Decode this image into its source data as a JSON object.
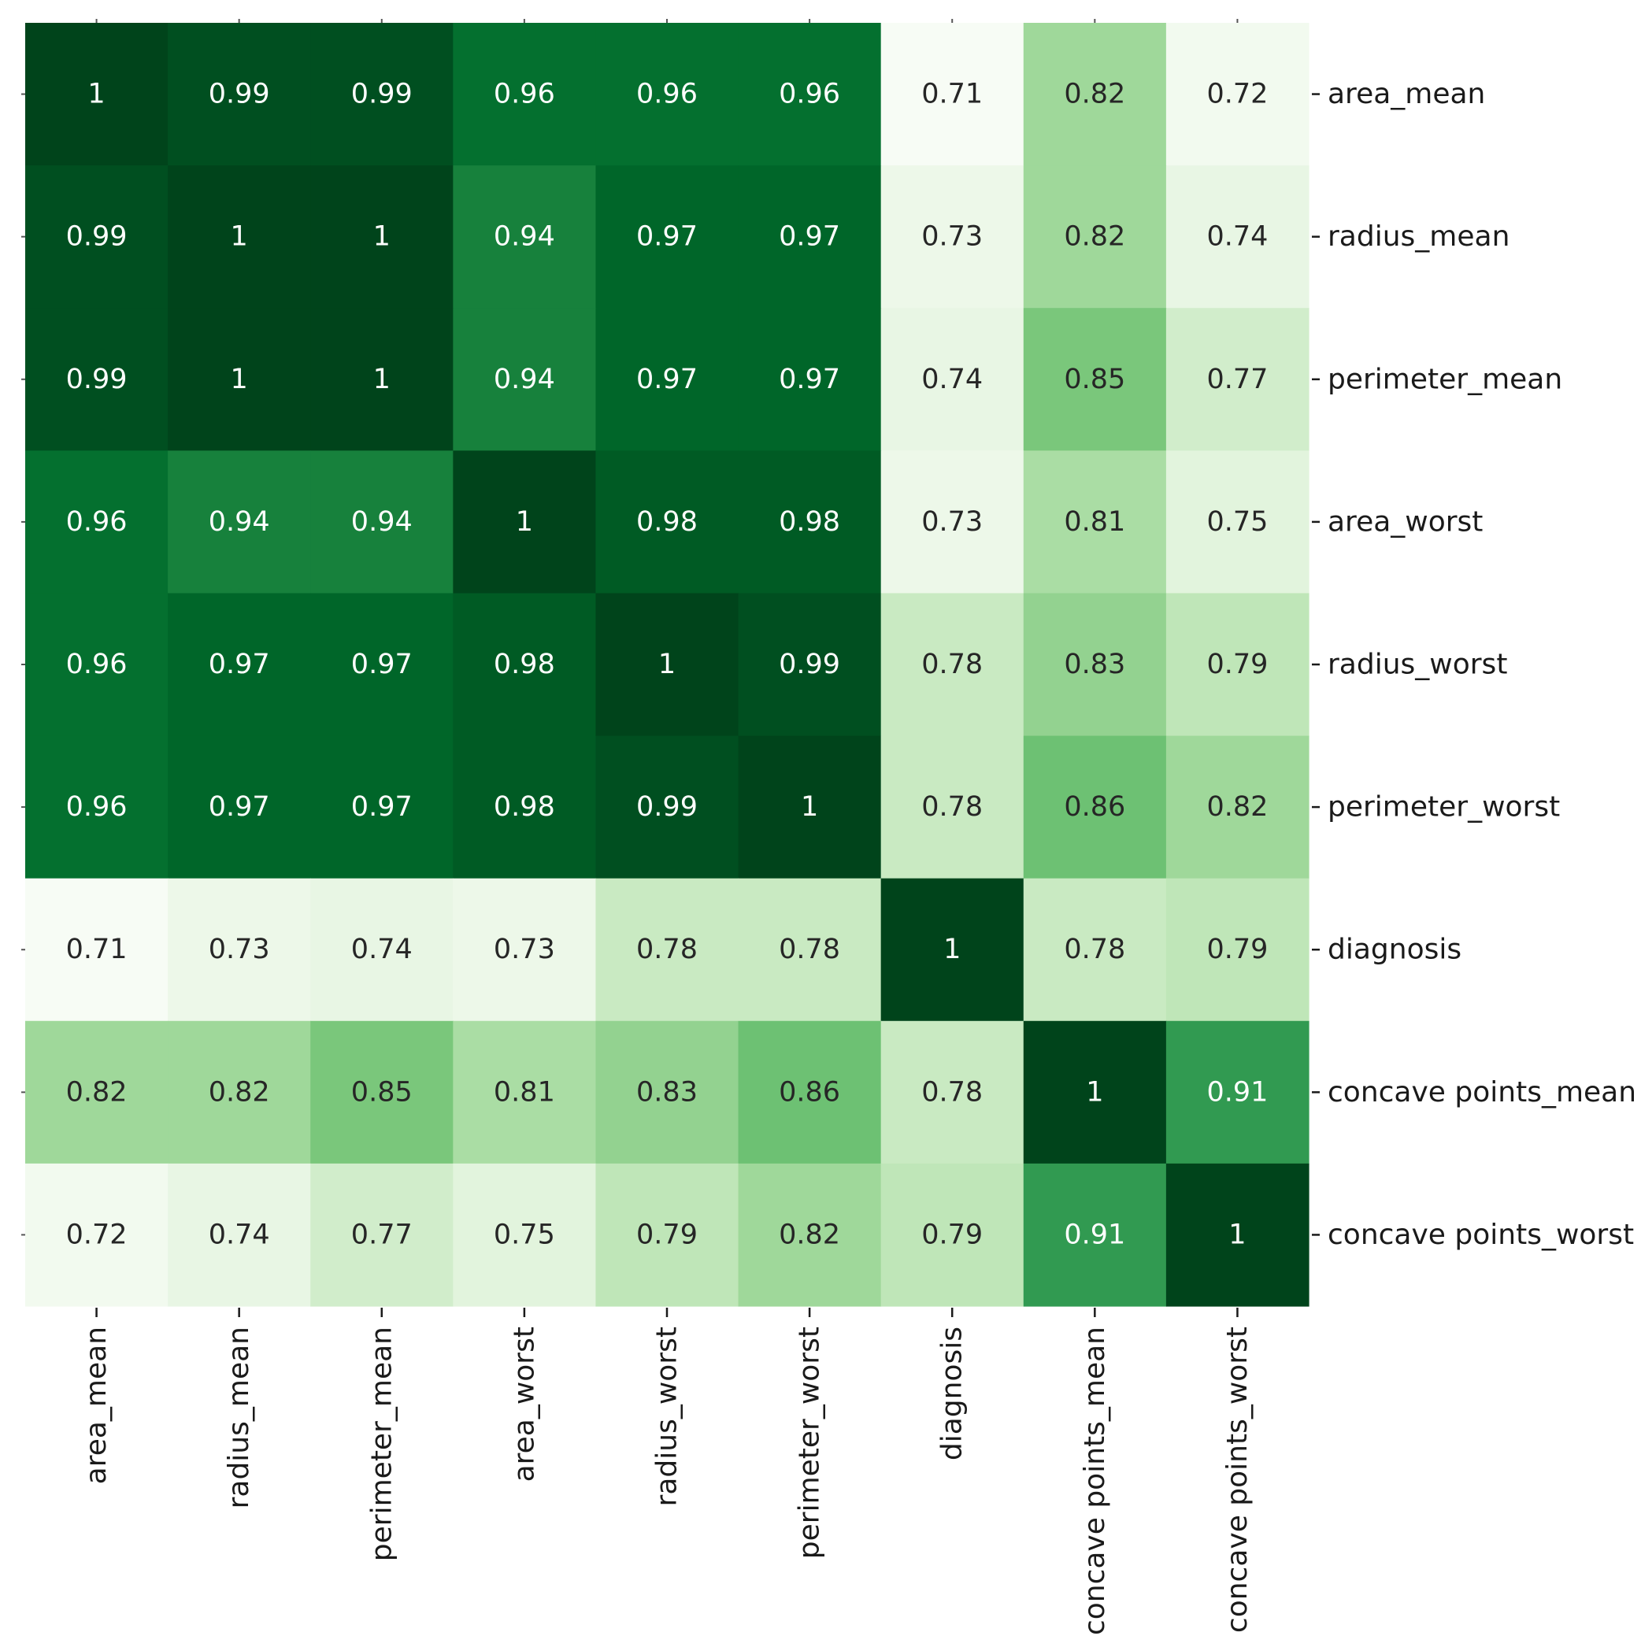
{
  "chart_data": {
    "type": "heatmap",
    "title": "",
    "xlabel": "",
    "ylabel": "",
    "colormap": "Greens",
    "value_range": [
      0.71,
      1.0
    ],
    "rows": [
      "area_mean",
      "radius_mean",
      "perimeter_mean",
      "area_worst",
      "radius_worst",
      "perimeter_worst",
      "diagnosis",
      "concave points_mean",
      "concave points_worst"
    ],
    "columns": [
      "area_mean",
      "radius_mean",
      "perimeter_mean",
      "area_worst",
      "radius_worst",
      "perimeter_worst",
      "diagnosis",
      "concave points_mean",
      "concave points_worst"
    ],
    "values": [
      [
        1,
        0.99,
        0.99,
        0.96,
        0.96,
        0.96,
        0.71,
        0.82,
        0.72
      ],
      [
        0.99,
        1,
        1,
        0.94,
        0.97,
        0.97,
        0.73,
        0.82,
        0.74
      ],
      [
        0.99,
        1,
        1,
        0.94,
        0.97,
        0.97,
        0.74,
        0.85,
        0.77
      ],
      [
        0.96,
        0.94,
        0.94,
        1,
        0.98,
        0.98,
        0.73,
        0.81,
        0.75
      ],
      [
        0.96,
        0.97,
        0.97,
        0.98,
        1,
        0.99,
        0.78,
        0.83,
        0.79
      ],
      [
        0.96,
        0.97,
        0.97,
        0.98,
        0.99,
        1,
        0.78,
        0.86,
        0.82
      ],
      [
        0.71,
        0.73,
        0.74,
        0.73,
        0.78,
        0.78,
        1,
        0.78,
        0.79
      ],
      [
        0.82,
        0.82,
        0.85,
        0.81,
        0.83,
        0.86,
        0.78,
        1,
        0.91
      ],
      [
        0.72,
        0.74,
        0.77,
        0.75,
        0.79,
        0.82,
        0.79,
        0.91,
        1
      ]
    ],
    "row_label_position": "right",
    "column_label_position": "bottom",
    "column_label_rotation": "vertical",
    "colorbar": false,
    "grid": false
  }
}
